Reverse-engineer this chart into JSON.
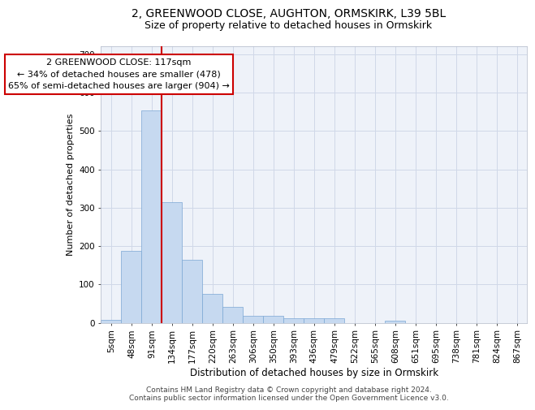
{
  "title1": "2, GREENWOOD CLOSE, AUGHTON, ORMSKIRK, L39 5BL",
  "title2": "Size of property relative to detached houses in Ormskirk",
  "xlabel": "Distribution of detached houses by size in Ormskirk",
  "ylabel": "Number of detached properties",
  "footnote1": "Contains HM Land Registry data © Crown copyright and database right 2024.",
  "footnote2": "Contains public sector information licensed under the Open Government Licence v3.0.",
  "bar_labels": [
    "5sqm",
    "48sqm",
    "91sqm",
    "134sqm",
    "177sqm",
    "220sqm",
    "263sqm",
    "306sqm",
    "350sqm",
    "393sqm",
    "436sqm",
    "479sqm",
    "522sqm",
    "565sqm",
    "608sqm",
    "651sqm",
    "695sqm",
    "738sqm",
    "781sqm",
    "824sqm",
    "867sqm"
  ],
  "bar_values": [
    8,
    188,
    553,
    315,
    165,
    75,
    42,
    18,
    18,
    12,
    12,
    12,
    0,
    0,
    6,
    0,
    0,
    0,
    0,
    0,
    0
  ],
  "bar_color": "#c6d9f0",
  "bar_edgecolor": "#7ba7d4",
  "vline_x": 2.5,
  "vline_color": "#cc0000",
  "annotation_box_text": "2 GREENWOOD CLOSE: 117sqm\n← 34% of detached houses are smaller (478)\n65% of semi-detached houses are larger (904) →",
  "ylim": [
    0,
    720
  ],
  "yticks": [
    0,
    100,
    200,
    300,
    400,
    500,
    600,
    700
  ],
  "grid_color": "#d0d8e8",
  "title1_fontsize": 10,
  "title2_fontsize": 9,
  "xlabel_fontsize": 8.5,
  "ylabel_fontsize": 8,
  "tick_fontsize": 7.5,
  "annotation_fontsize": 8,
  "footnote_fontsize": 6.5,
  "bg_color": "#eef2f9"
}
